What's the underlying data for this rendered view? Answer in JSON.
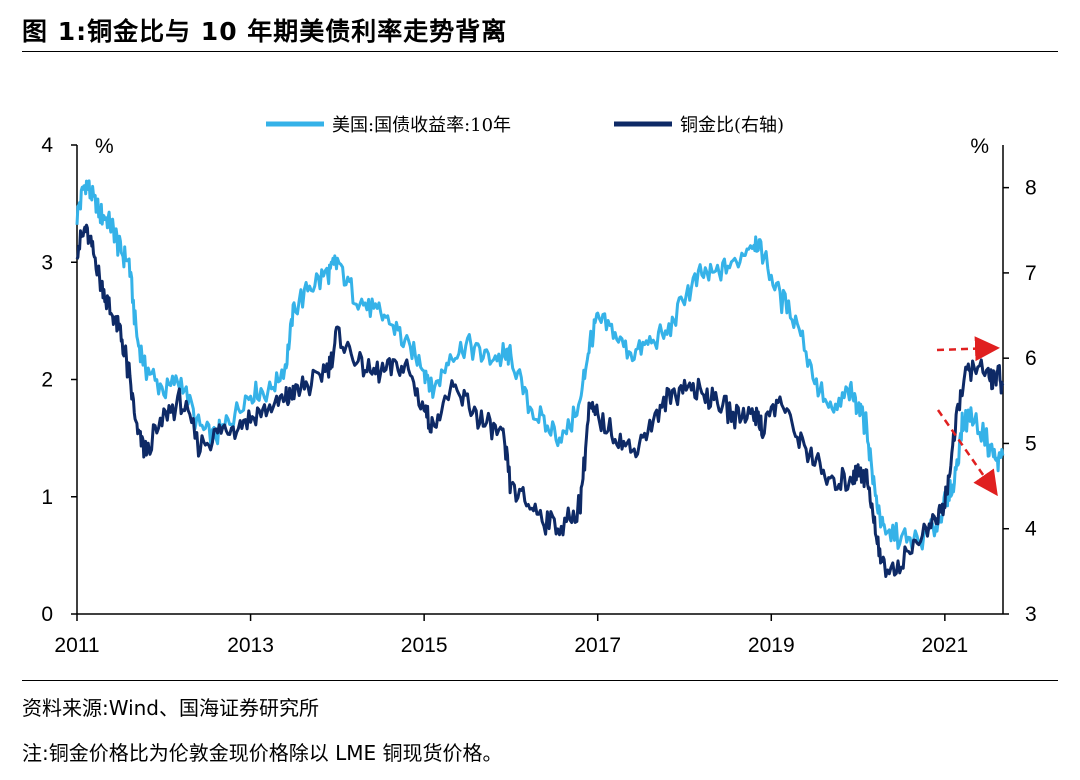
{
  "figure": {
    "title": "图 1:铜金比与 10 年期美债利率走势背离",
    "source_note": "资料来源:Wind、国海证券研究所",
    "footnote": "注:铜金价格比为伦敦金现价格除以 LME 铜现货价格。"
  },
  "chart_data": {
    "type": "line",
    "title": "",
    "xlabel": "",
    "ylabel": "%",
    "y2label": "%",
    "x_ticks": [
      "2011",
      "2013",
      "2015",
      "2017",
      "2019",
      "2021"
    ],
    "xlim": [
      2011.0,
      2021.67
    ],
    "ylim": [
      0,
      4
    ],
    "y_ticks": [
      0,
      1,
      2,
      3,
      4
    ],
    "y2lim": [
      3,
      8.5
    ],
    "y2_ticks": [
      3,
      4,
      5,
      6,
      7,
      8
    ],
    "grid": false,
    "legend_position": "top-center",
    "colors": {
      "yield": "#35B2E8",
      "ratio": "#0E2A66",
      "arrow": "#E02020"
    },
    "series": [
      {
        "name": "美国:国债收益率:10年",
        "axis": "left",
        "x": [
          2011.0,
          2011.1,
          2011.2,
          2011.3,
          2011.4,
          2011.5,
          2011.6,
          2011.7,
          2011.8,
          2012.0,
          2012.2,
          2012.4,
          2012.6,
          2012.8,
          2013.0,
          2013.2,
          2013.4,
          2013.5,
          2013.7,
          2013.9,
          2014.0,
          2014.2,
          2014.4,
          2014.6,
          2014.8,
          2015.0,
          2015.1,
          2015.3,
          2015.5,
          2015.7,
          2015.9,
          2016.0,
          2016.2,
          2016.4,
          2016.6,
          2016.8,
          2016.9,
          2017.0,
          2017.2,
          2017.4,
          2017.6,
          2017.8,
          2018.0,
          2018.2,
          2018.4,
          2018.6,
          2018.8,
          2018.9,
          2019.1,
          2019.3,
          2019.5,
          2019.7,
          2019.9,
          2020.0,
          2020.1,
          2020.2,
          2020.3,
          2020.5,
          2020.7,
          2020.9,
          2021.0,
          2021.1,
          2021.2,
          2021.3,
          2021.5,
          2021.6,
          2021.67
        ],
        "values": [
          3.4,
          3.7,
          3.5,
          3.4,
          3.3,
          3.1,
          3.0,
          2.3,
          2.1,
          1.9,
          2.0,
          1.6,
          1.5,
          1.7,
          1.9,
          1.9,
          2.1,
          2.6,
          2.8,
          2.9,
          3.0,
          2.7,
          2.6,
          2.5,
          2.3,
          2.1,
          1.9,
          2.2,
          2.3,
          2.2,
          2.2,
          2.2,
          1.8,
          1.6,
          1.5,
          1.8,
          2.3,
          2.5,
          2.4,
          2.2,
          2.3,
          2.4,
          2.7,
          2.9,
          2.9,
          3.0,
          3.2,
          3.1,
          2.7,
          2.5,
          2.0,
          1.7,
          1.9,
          1.8,
          1.6,
          1.0,
          0.7,
          0.65,
          0.6,
          0.75,
          0.95,
          1.1,
          1.6,
          1.7,
          1.45,
          1.3,
          1.35
        ]
      },
      {
        "name": "铜金比(右轴)",
        "axis": "right",
        "x": [
          2011.0,
          2011.1,
          2011.2,
          2011.3,
          2011.4,
          2011.5,
          2011.6,
          2011.7,
          2011.8,
          2012.0,
          2012.2,
          2012.4,
          2012.6,
          2012.8,
          2013.0,
          2013.2,
          2013.4,
          2013.5,
          2013.7,
          2013.9,
          2014.0,
          2014.2,
          2014.4,
          2014.6,
          2014.8,
          2015.0,
          2015.1,
          2015.3,
          2015.5,
          2015.7,
          2015.9,
          2016.0,
          2016.2,
          2016.4,
          2016.6,
          2016.8,
          2016.9,
          2017.0,
          2017.2,
          2017.4,
          2017.6,
          2017.8,
          2018.0,
          2018.2,
          2018.4,
          2018.6,
          2018.8,
          2018.9,
          2019.1,
          2019.3,
          2019.5,
          2019.7,
          2019.9,
          2020.0,
          2020.1,
          2020.2,
          2020.3,
          2020.5,
          2020.7,
          2020.9,
          2021.0,
          2021.1,
          2021.2,
          2021.3,
          2021.5,
          2021.6,
          2021.67
        ],
        "values": [
          7.3,
          7.5,
          7.2,
          6.8,
          6.5,
          6.3,
          5.8,
          5.1,
          4.9,
          5.3,
          5.5,
          5.0,
          5.1,
          5.2,
          5.3,
          5.4,
          5.5,
          5.6,
          5.7,
          5.9,
          6.3,
          6.0,
          5.8,
          5.9,
          5.9,
          5.4,
          5.2,
          5.6,
          5.5,
          5.2,
          5.1,
          4.5,
          4.3,
          4.1,
          4.0,
          4.3,
          5.4,
          5.3,
          5.1,
          4.9,
          5.2,
          5.5,
          5.7,
          5.6,
          5.5,
          5.3,
          5.4,
          5.2,
          5.5,
          5.1,
          4.8,
          4.5,
          4.6,
          4.7,
          4.6,
          4.0,
          3.5,
          3.6,
          3.9,
          4.1,
          4.3,
          5.0,
          5.7,
          5.9,
          5.8,
          5.8,
          5.7
        ]
      }
    ]
  }
}
